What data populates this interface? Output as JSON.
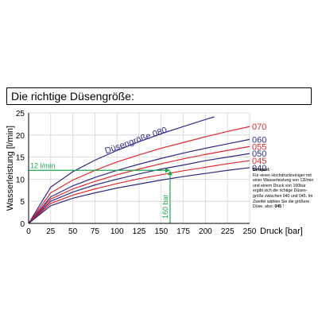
{
  "title": "Die richtige Düsengröße:",
  "colors": {
    "blue": "#2e2a86",
    "red": "#e0282e",
    "green": "#1fa64a",
    "grid": "#d6d6d6",
    "axis": "#000000"
  },
  "chart_data": {
    "type": "line",
    "xlabel": "Druck [bar]",
    "ylabel": "Wasserleistung [l/min]",
    "xlim": [
      0,
      250
    ],
    "ylim": [
      0,
      25
    ],
    "xticks": [
      0,
      25,
      50,
      75,
      100,
      125,
      150,
      175,
      200,
      225,
      250
    ],
    "yticks": [
      0,
      5,
      10,
      15,
      20,
      25
    ],
    "grid": true,
    "series": [
      {
        "name": "Düsengröße 080",
        "color": "blue",
        "x": [
          0,
          25,
          50,
          75,
          100,
          125,
          150,
          175,
          200,
          210
        ],
        "y": [
          0,
          8.2,
          11.7,
          14.3,
          16.5,
          18.5,
          20.3,
          21.9,
          23.5,
          24.1
        ],
        "label_position": "inline"
      },
      {
        "name": "070",
        "color": "red",
        "x": [
          0,
          25,
          50,
          75,
          100,
          125,
          150,
          175,
          200,
          225,
          250
        ],
        "y": [
          0,
          6.9,
          9.8,
          12.0,
          13.9,
          15.5,
          17.0,
          18.3,
          19.6,
          20.8,
          21.9
        ],
        "label_position": "right"
      },
      {
        "name": "060",
        "color": "blue",
        "x": [
          0,
          25,
          50,
          75,
          100,
          125,
          150,
          175,
          200,
          225,
          250
        ],
        "y": [
          0,
          6.0,
          8.5,
          10.4,
          12.0,
          13.4,
          14.7,
          15.9,
          17.0,
          18.0,
          19.0
        ],
        "label_position": "right"
      },
      {
        "name": "055",
        "color": "red",
        "x": [
          0,
          25,
          50,
          75,
          100,
          125,
          150,
          175,
          200,
          225,
          250
        ],
        "y": [
          0,
          5.5,
          7.8,
          9.5,
          11.0,
          12.3,
          13.5,
          14.6,
          15.6,
          16.5,
          17.4
        ],
        "label_position": "right"
      },
      {
        "name": "050",
        "color": "blue",
        "x": [
          0,
          25,
          50,
          75,
          100,
          125,
          150,
          175,
          200,
          225,
          250
        ],
        "y": [
          0,
          5.0,
          7.1,
          8.7,
          10.0,
          11.2,
          12.3,
          13.2,
          14.2,
          15.0,
          15.8
        ],
        "label_position": "right"
      },
      {
        "name": "045",
        "color": "red",
        "x": [
          0,
          25,
          50,
          75,
          100,
          125,
          150,
          175,
          200,
          225,
          250
        ],
        "y": [
          0,
          4.5,
          6.4,
          7.8,
          9.0,
          10.1,
          11.0,
          11.9,
          12.7,
          13.5,
          14.2
        ],
        "label_position": "right"
      },
      {
        "name": "040",
        "color": "blue",
        "x": [
          0,
          25,
          50,
          75,
          100,
          125,
          150,
          175,
          200,
          225,
          250
        ],
        "y": [
          0,
          4.0,
          5.7,
          6.9,
          8.0,
          8.9,
          9.8,
          10.6,
          11.3,
          12.0,
          12.6
        ],
        "label_position": "right"
      }
    ],
    "annotations": [
      {
        "text": "12 l/min",
        "kind": "horizontal",
        "value": 12,
        "from_x": 0,
        "to_x": 160,
        "color": "green"
      },
      {
        "text": "160 bar",
        "kind": "vertical",
        "value": 160,
        "from_y": 0,
        "to_y": 12,
        "color": "green"
      }
    ]
  },
  "example": {
    "heading": "Beispiel:",
    "body": "Für einen Hochdruckreiniger mit einer Wasserleistung von 12l/min und einem Druck von 160bar ergibt sich die richtige Düsen-größe zwischen 040 und 045. Im Zweifel wählen Sie die größere Düse, also:",
    "answer": "045",
    "suffix": " !"
  }
}
